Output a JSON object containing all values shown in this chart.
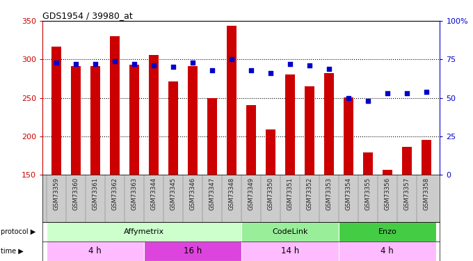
{
  "title": "GDS1954 / 39980_at",
  "samples": [
    "GSM73359",
    "GSM73360",
    "GSM73361",
    "GSM73362",
    "GSM73363",
    "GSM73344",
    "GSM73345",
    "GSM73346",
    "GSM73347",
    "GSM73348",
    "GSM73349",
    "GSM73350",
    "GSM73351",
    "GSM73352",
    "GSM73353",
    "GSM73354",
    "GSM73355",
    "GSM73356",
    "GSM73357",
    "GSM73358"
  ],
  "counts": [
    317,
    291,
    291,
    330,
    293,
    306,
    271,
    291,
    250,
    344,
    241,
    209,
    280,
    265,
    282,
    251,
    179,
    157,
    186,
    195
  ],
  "percentiles": [
    73,
    72,
    72,
    74,
    72,
    71,
    70,
    73,
    68,
    75,
    68,
    66,
    72,
    71,
    69,
    50,
    48,
    53,
    53,
    54
  ],
  "bar_color": "#cc0000",
  "dot_color": "#0000cc",
  "ylim_left": [
    150,
    350
  ],
  "ylim_right": [
    0,
    100
  ],
  "yticks_left": [
    150,
    200,
    250,
    300,
    350
  ],
  "yticks_right": [
    0,
    25,
    50,
    75,
    100
  ],
  "ytick_labels_right": [
    "0",
    "25",
    "50",
    "75",
    "100%"
  ],
  "hlines": [
    200,
    250,
    300
  ],
  "protocol_groups": [
    {
      "label": "Affymetrix",
      "start": 0,
      "end": 9,
      "color": "#ccffcc"
    },
    {
      "label": "CodeLink",
      "start": 10,
      "end": 14,
      "color": "#99ee99"
    },
    {
      "label": "Enzo",
      "start": 15,
      "end": 19,
      "color": "#44cc44"
    }
  ],
  "time_groups": [
    {
      "label": "4 h",
      "start": 0,
      "end": 4,
      "color": "#ffbbff"
    },
    {
      "label": "16 h",
      "start": 5,
      "end": 9,
      "color": "#dd44dd"
    },
    {
      "label": "14 h",
      "start": 10,
      "end": 14,
      "color": "#ffbbff"
    },
    {
      "label": "4 h",
      "start": 15,
      "end": 19,
      "color": "#ffbbff"
    }
  ],
  "background_color": "#ffffff",
  "bar_width": 0.5,
  "xlabel_bg": "#cccccc"
}
